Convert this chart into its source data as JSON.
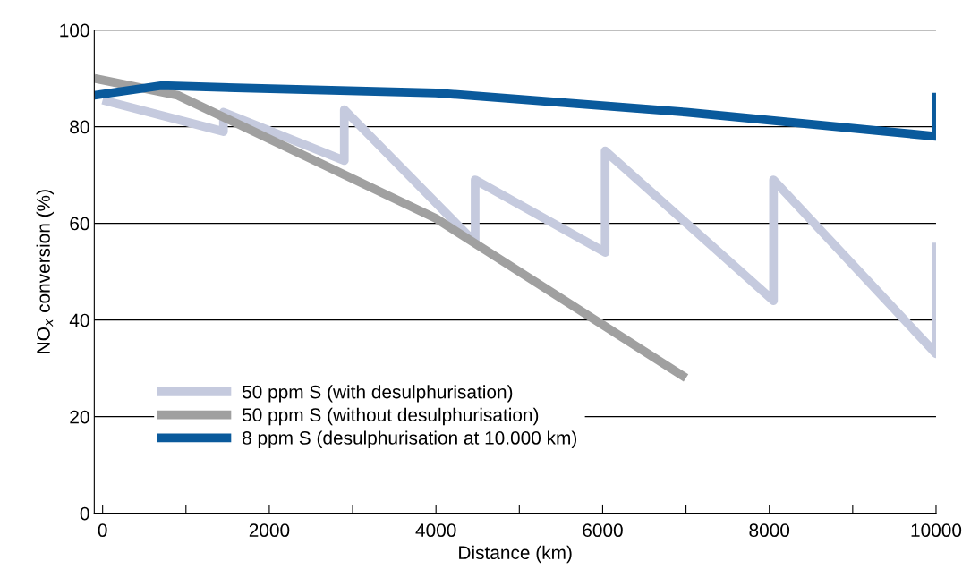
{
  "chart_data": {
    "type": "line",
    "xlabel": "Distance (km)",
    "ylabel": "NO$_{x}$ conversion (%)",
    "xlim": [
      -100,
      10000
    ],
    "ylim": [
      0,
      100
    ],
    "xticks": [
      0,
      {
        "value": 1000,
        "label": null
      },
      2000,
      {
        "value": 3000,
        "label": null
      },
      4000,
      {
        "value": 5000,
        "label": null
      },
      6000,
      {
        "value": 7000,
        "label": null
      },
      8000,
      {
        "value": 9000,
        "label": null
      },
      10000
    ],
    "yticks": [
      0,
      20,
      40,
      60,
      80,
      100
    ],
    "grid": "y",
    "legend": "bottom left",
    "marker": "none",
    "line_style": "solid",
    "series": [
      {
        "name": "50 ppm S (with desulphurisation)",
        "color": "#c5cade",
        "x": [
          0,
          1450,
          1450,
          2900,
          2900,
          4470,
          4470,
          6030,
          6030,
          8050,
          8050,
          10000,
          10000
        ],
        "values": [
          85.5,
          79,
          83,
          73,
          83.5,
          56,
          69,
          54,
          75,
          44,
          69,
          33,
          56
        ]
      },
      {
        "name": "50 ppm S (without desulphurisation)",
        "color": "#a0a0a0",
        "x": [
          -100,
          900,
          4000,
          7000
        ],
        "values": [
          90,
          86.5,
          61,
          28
        ]
      },
      {
        "name": "8 ppm S (desulphurisation at 10.000 km)",
        "color": "#0a5a9c",
        "x": [
          -100,
          700,
          1700,
          4000,
          7000,
          10000,
          10000
        ],
        "values": [
          86.5,
          88.5,
          88,
          87,
          83,
          78,
          87
        ]
      }
    ]
  }
}
